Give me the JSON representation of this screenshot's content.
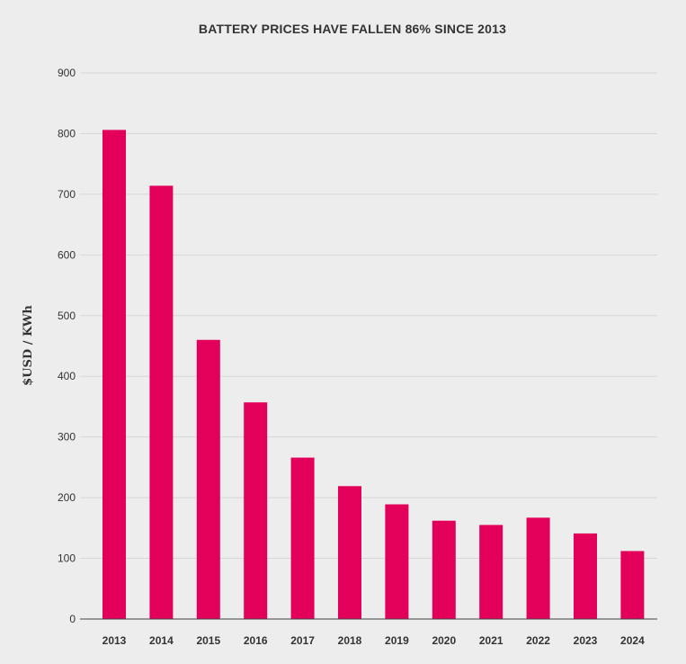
{
  "chart_data": {
    "type": "bar",
    "title": "BATTERY PRICES HAVE FALLEN 86% SINCE 2013",
    "xlabel": "",
    "ylabel": "$USD / KWh",
    "categories": [
      "2013",
      "2014",
      "2015",
      "2016",
      "2017",
      "2018",
      "2019",
      "2020",
      "2021",
      "2022",
      "2023",
      "2024"
    ],
    "values": [
      806,
      714,
      460,
      357,
      266,
      219,
      189,
      162,
      155,
      167,
      141,
      112
    ],
    "ylim": [
      0,
      900
    ],
    "yticks": [
      "0",
      "100",
      "200",
      "300",
      "400",
      "500",
      "600",
      "700",
      "800",
      "900"
    ],
    "grid": true,
    "legend": "none",
    "bar_color": "#e3005a",
    "background_color": "#ededed"
  }
}
